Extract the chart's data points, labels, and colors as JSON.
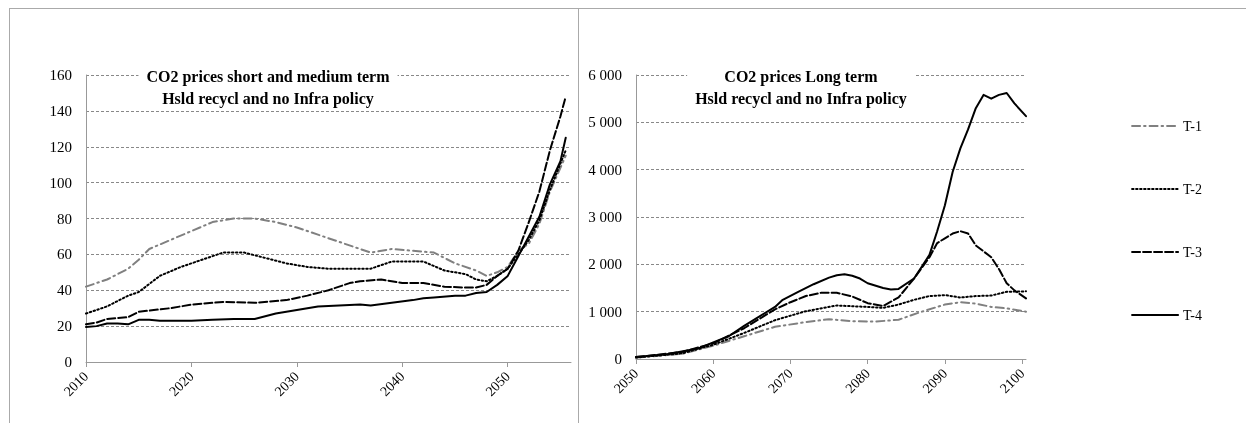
{
  "chart_data": [
    {
      "type": "line",
      "title": "CO2 prices short and medium term\nHsld recycl and no Infra policy",
      "xlim": [
        2010,
        2056
      ],
      "xticks": [
        2010,
        2020,
        2030,
        2040,
        2050
      ],
      "ylim": [
        0,
        160
      ],
      "yticks": [
        0,
        20,
        40,
        60,
        80,
        100,
        120,
        140,
        160
      ],
      "grid": "y",
      "legend": false,
      "series": [
        {
          "color": "#808080",
          "line_style": "dashdot",
          "x": [
            2010,
            2012,
            2014,
            2015,
            2016,
            2018,
            2020,
            2022,
            2024,
            2026,
            2028,
            2030,
            2032,
            2034,
            2036,
            2037,
            2039,
            2041,
            2043,
            2045,
            2047,
            2048,
            2049,
            2050,
            2051,
            2052,
            2053,
            2054,
            2055.5
          ],
          "values": [
            42,
            46,
            52,
            57,
            63,
            68,
            73,
            78,
            80,
            80,
            78,
            75,
            71,
            67,
            63,
            61,
            63,
            62,
            61,
            55,
            51,
            48,
            50,
            53,
            62,
            66,
            77,
            95,
            115
          ]
        },
        {
          "color": "#000000",
          "line_style": "dotted",
          "x": [
            2010,
            2012,
            2014,
            2015,
            2017,
            2019,
            2021,
            2023,
            2025,
            2027,
            2029,
            2031,
            2033,
            2035,
            2037,
            2039,
            2041,
            2042,
            2044,
            2046,
            2047,
            2048,
            2049,
            2050,
            2051,
            2052,
            2053,
            2054,
            2055.5
          ],
          "values": [
            27,
            31,
            37,
            39,
            48,
            53,
            57,
            61,
            61,
            58,
            55,
            53,
            52,
            52,
            52,
            56,
            56,
            56,
            51,
            49,
            46,
            45,
            48,
            52,
            60,
            68,
            79,
            96,
            118
          ]
        },
        {
          "color": "#000000",
          "line_style": "dashed",
          "x": [
            2010,
            2011,
            2012,
            2014,
            2015,
            2018,
            2020,
            2023,
            2026,
            2029,
            2031,
            2033,
            2035,
            2036,
            2038,
            2040,
            2042,
            2044,
            2046,
            2047,
            2048,
            2049,
            2050,
            2051,
            2052,
            2053,
            2054,
            2055,
            2055.5
          ],
          "values": [
            21,
            22,
            24,
            25,
            28,
            30,
            32,
            33.5,
            33,
            34.5,
            37,
            40,
            44,
            45,
            46,
            44,
            44,
            42,
            41.5,
            41.5,
            43,
            48,
            52,
            62,
            78,
            95,
            118,
            137,
            148
          ]
        },
        {
          "color": "#000000",
          "line_style": "solid",
          "x": [
            2010,
            2011,
            2012,
            2013,
            2014,
            2015,
            2016,
            2017,
            2020,
            2022,
            2024,
            2026,
            2028,
            2030,
            2032,
            2034,
            2036,
            2037,
            2039,
            2041,
            2042,
            2043,
            2045,
            2046,
            2047,
            2048,
            2049,
            2050,
            2051,
            2052,
            2053,
            2054,
            2055,
            2055.5
          ],
          "values": [
            19.5,
            20,
            21.5,
            21.5,
            21,
            23.5,
            23.5,
            23,
            23,
            23.5,
            24,
            24,
            27,
            29,
            31,
            31.5,
            32,
            31.5,
            33,
            34.5,
            35.5,
            36,
            37,
            37,
            38.5,
            39,
            43,
            48,
            59,
            70,
            81,
            99,
            112,
            125
          ]
        }
      ]
    },
    {
      "type": "line",
      "title": "CO2 prices Long term\nHsld recycl and no Infra policy",
      "xlim": [
        2050,
        2100.5
      ],
      "xticks": [
        2050,
        2060,
        2070,
        2080,
        2090,
        2100
      ],
      "ylim": [
        0,
        6000
      ],
      "yticks": [
        0,
        {
          "value": 1000,
          "label": "1 000"
        },
        {
          "value": 2000,
          "label": "2 000"
        },
        {
          "value": 3000,
          "label": "3 000"
        },
        {
          "value": 4000,
          "label": "4 000"
        },
        {
          "value": 5000,
          "label": "5 000"
        },
        {
          "value": 6000,
          "label": "6 000"
        }
      ],
      "grid": "y",
      "legend": "right",
      "series": [
        {
          "name": "T-1",
          "color": "#808080",
          "line_style": "dashdot",
          "x": [
            2050,
            2056,
            2060,
            2064,
            2068,
            2072,
            2075,
            2078,
            2081,
            2084,
            2087,
            2090,
            2092,
            2094,
            2096,
            2098,
            2100.5
          ],
          "values": [
            30,
            110,
            280,
            480,
            680,
            780,
            840,
            800,
            790,
            830,
            1000,
            1150,
            1200,
            1170,
            1100,
            1070,
            1000
          ]
        },
        {
          "name": "T-2",
          "color": "#000000",
          "line_style": "dotted",
          "x": [
            2050,
            2056,
            2060,
            2064,
            2068,
            2072,
            2076,
            2080,
            2082,
            2084,
            2086,
            2088,
            2090,
            2092,
            2094,
            2096,
            2098,
            2100.5
          ],
          "values": [
            30,
            120,
            300,
            550,
            820,
            1010,
            1130,
            1100,
            1080,
            1150,
            1250,
            1330,
            1350,
            1300,
            1330,
            1340,
            1420,
            1430
          ]
        },
        {
          "name": "T-3",
          "color": "#000000",
          "line_style": "dashed",
          "x": [
            2050,
            2056,
            2060,
            2064,
            2066,
            2068,
            2070,
            2072,
            2074,
            2076,
            2078,
            2080,
            2082,
            2084,
            2086,
            2088,
            2089,
            2090,
            2091,
            2092,
            2093,
            2094,
            2096,
            2097,
            2098,
            2099,
            2100.5
          ],
          "values": [
            40,
            150,
            330,
            650,
            850,
            1050,
            1200,
            1330,
            1400,
            1400,
            1320,
            1180,
            1120,
            1300,
            1700,
            2150,
            2450,
            2550,
            2650,
            2700,
            2650,
            2400,
            2150,
            1900,
            1600,
            1450,
            1280
          ]
        },
        {
          "name": "T-4",
          "color": "#000000",
          "line_style": "solid",
          "x": [
            2050,
            2054,
            2058,
            2060,
            2062,
            2064,
            2066,
            2068,
            2069,
            2071,
            2073,
            2075,
            2076,
            2077,
            2078,
            2079,
            2080,
            2082,
            2083,
            2084,
            2086,
            2087,
            2088,
            2089,
            2090,
            2091,
            2092,
            2093,
            2094,
            2095,
            2096,
            2097,
            2098,
            2099,
            2100.5
          ],
          "values": [
            40,
            100,
            220,
            350,
            480,
            700,
            900,
            1100,
            1250,
            1420,
            1580,
            1720,
            1770,
            1790,
            1760,
            1700,
            1600,
            1500,
            1470,
            1480,
            1700,
            1950,
            2200,
            2700,
            3250,
            3950,
            4450,
            4850,
            5300,
            5580,
            5500,
            5580,
            5620,
            5400,
            5130
          ]
        }
      ]
    }
  ]
}
